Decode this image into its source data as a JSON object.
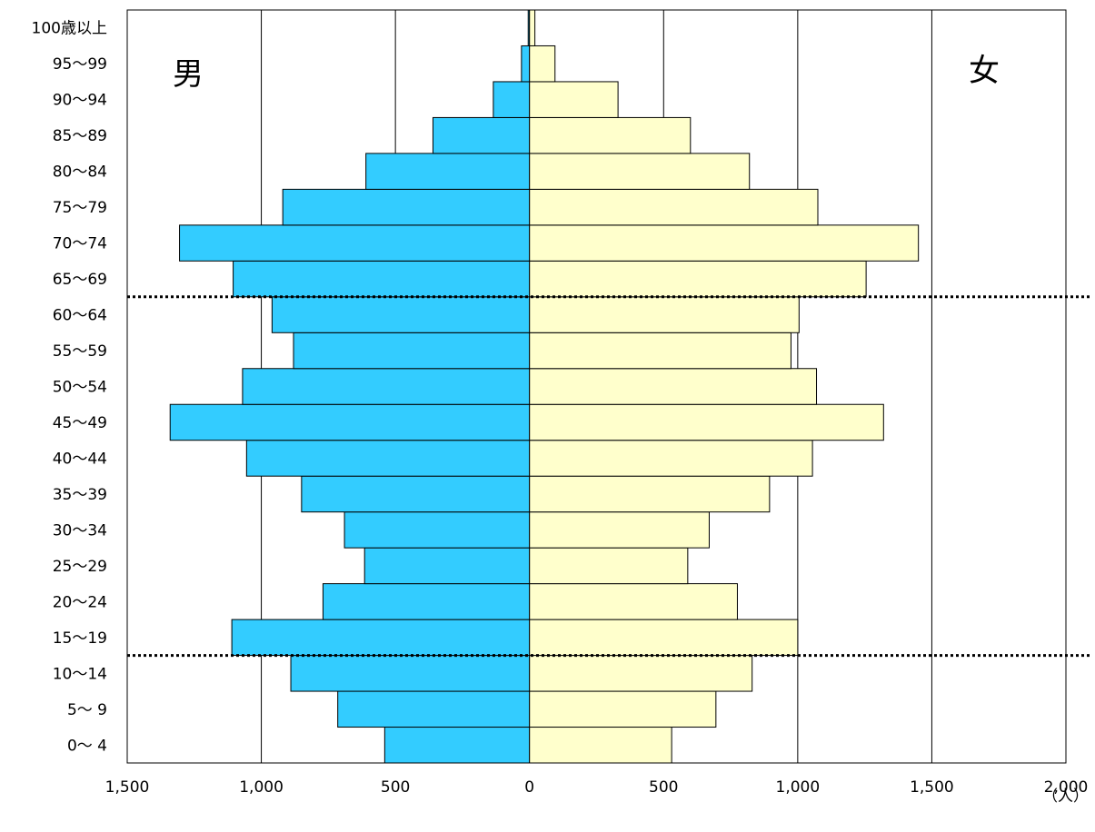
{
  "chart_data": {
    "type": "bar",
    "orientation": "horizontal-population-pyramid",
    "title": "",
    "unit_label": "（人）",
    "left_label": "男",
    "right_label": "女",
    "categories": [
      "0～ 4",
      "5～ 9",
      "10～14",
      "15～19",
      "20～24",
      "25～29",
      "30～34",
      "35～39",
      "40～44",
      "45～49",
      "50～54",
      "55～59",
      "60～64",
      "65～69",
      "70～74",
      "75～79",
      "80～84",
      "85～89",
      "90～94",
      "95～99",
      "100歳以上"
    ],
    "series": [
      {
        "name": "男",
        "color": "#33ccff",
        "values": [
          540,
          715,
          890,
          1110,
          770,
          615,
          690,
          850,
          1055,
          1340,
          1070,
          880,
          960,
          1105,
          1305,
          920,
          610,
          360,
          135,
          30,
          5
        ]
      },
      {
        "name": "女",
        "color": "#ffffcc",
        "values": [
          530,
          695,
          830,
          1000,
          775,
          590,
          670,
          895,
          1055,
          1320,
          1070,
          975,
          1005,
          1255,
          1450,
          1075,
          820,
          600,
          330,
          95,
          20
        ]
      }
    ],
    "x_ticks": [
      "1,500",
      "1,000",
      "500",
      "0",
      "500",
      "1,000",
      "1,500",
      "2,000"
    ],
    "xlim": [
      -1500,
      2000
    ],
    "reference_lines_between": [
      [
        "10～14",
        "15～19"
      ],
      [
        "60～64",
        "65～69"
      ]
    ],
    "grid": true
  }
}
